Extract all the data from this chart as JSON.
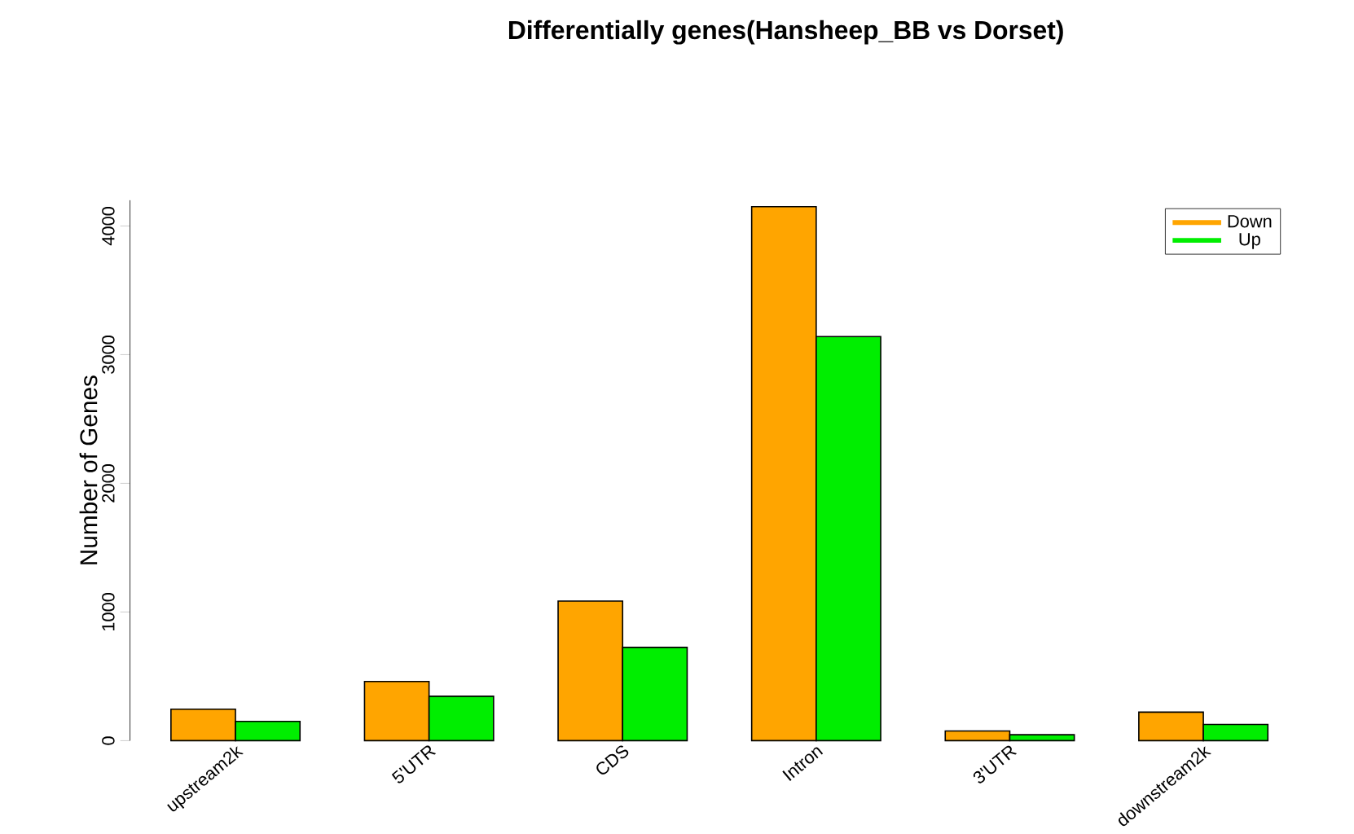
{
  "chart_data": {
    "type": "bar",
    "title": "Differentially genes(Hansheep_BB vs Dorset)",
    "ylabel": "Number of Genes",
    "categories": [
      "upstream2k",
      "5'UTR",
      "CDS",
      "Intron",
      "3'UTR",
      "downstream2k"
    ],
    "series": [
      {
        "name": "Down",
        "color": "#ffa500",
        "values": [
          245,
          460,
          1085,
          4150,
          75,
          222
        ]
      },
      {
        "name": "Up",
        "color": "#00ee00",
        "values": [
          150,
          345,
          725,
          3140,
          46,
          126
        ]
      }
    ],
    "ylim": [
      0,
      4200
    ],
    "yticks": [
      0,
      1000,
      2000,
      3000,
      4000
    ],
    "grid": false,
    "legend": "top right"
  }
}
